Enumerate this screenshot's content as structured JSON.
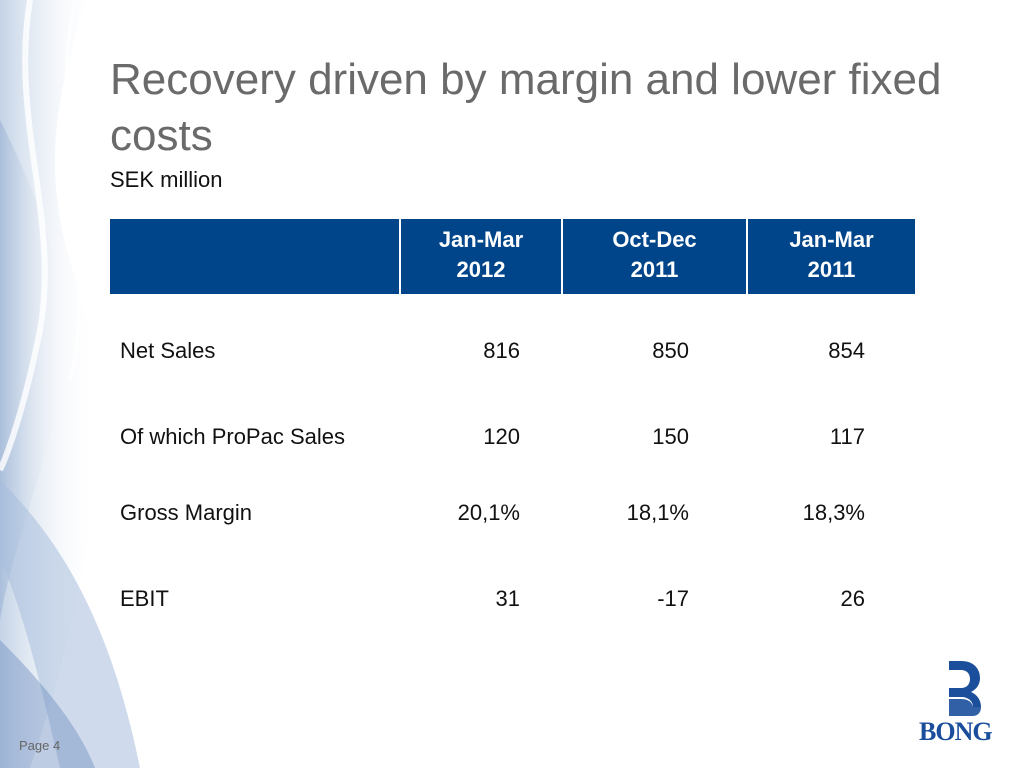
{
  "slide": {
    "title": "Recovery driven by margin and lower fixed costs",
    "subtitle": "SEK million"
  },
  "table": {
    "headers": [
      {
        "line1": "",
        "line2": ""
      },
      {
        "line1": "Jan-Mar",
        "line2": "2012"
      },
      {
        "line1": "Oct-Dec",
        "line2": "2011"
      },
      {
        "line1": "Jan-Mar",
        "line2": "2011"
      }
    ],
    "rows": [
      {
        "label": "Net Sales",
        "values": [
          "816",
          "850",
          "854"
        ]
      },
      {
        "label": "Of which ProPac Sales",
        "values": [
          "120",
          "150",
          "117"
        ]
      },
      {
        "label": "Gross Margin",
        "values": [
          "20,1%",
          "18,1%",
          "18,3%"
        ]
      },
      {
        "label": "EBIT",
        "values": [
          "31",
          "-17",
          "26"
        ]
      }
    ]
  },
  "colors": {
    "header_bg": "#00458a",
    "header_text": "#ffffff",
    "title_text": "#6a6a6a",
    "brand_blue": "#1b4f9c"
  },
  "logo": {
    "text": "BONG",
    "icon": "bong-b-logo-icon"
  },
  "footer": {
    "page_label": "Page 4"
  }
}
